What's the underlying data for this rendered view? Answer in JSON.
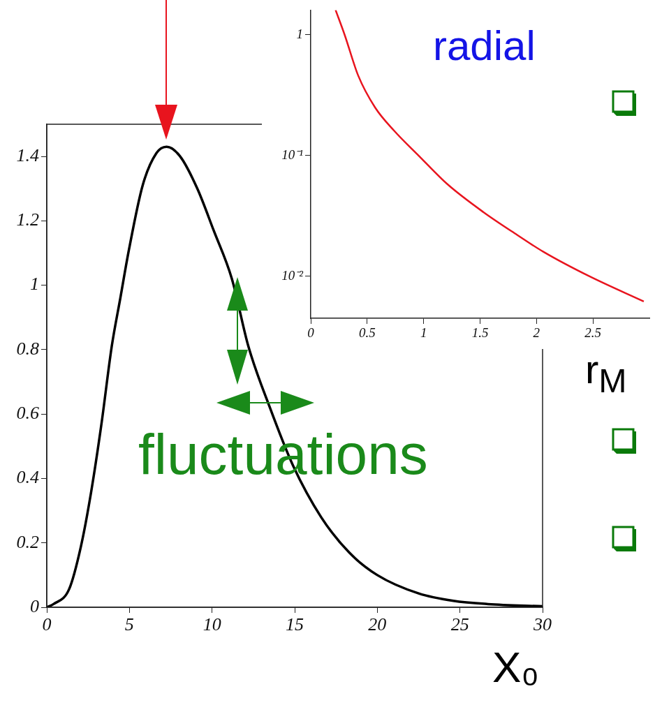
{
  "chart_data": [
    {
      "type": "line",
      "xlabel": "X₀",
      "annotations": [
        {
          "text": "fluctuations",
          "x": 11.7,
          "y": 0.92
        }
      ],
      "x": [
        0,
        0.41,
        1.35,
        2.07,
        2.69,
        3.31,
        3.93,
        4.45,
        4.97,
        5.8,
        6.63,
        7.25,
        8.07,
        9.11,
        10.1,
        11.2,
        12.2,
        13.5,
        14.9,
        16.6,
        18.3,
        20,
        22.5,
        24.6,
        26.7,
        30
      ],
      "series": [
        {
          "color": "#000000",
          "values": [
            0,
            0.01,
            0.056,
            0.19,
            0.36,
            0.57,
            0.81,
            0.96,
            1.11,
            1.31,
            1.41,
            1.43,
            1.4,
            1.3,
            1.17,
            1.02,
            0.81,
            0.62,
            0.44,
            0.28,
            0.17,
            0.1,
            0.043,
            0.02,
            0.01,
            0.003
          ]
        }
      ],
      "xlim": [
        0,
        30
      ],
      "xticks": [
        0,
        5,
        10,
        15,
        20,
        25,
        30
      ],
      "ylim": [
        0,
        1.5
      ],
      "yticks": [
        0,
        0.2,
        0.4,
        0.6,
        0.8,
        1,
        1.2,
        1.4
      ],
      "marker": "none"
    },
    {
      "type": "line",
      "xlabel": "r$_{M}$",
      "annotations": [
        "radial"
      ],
      "x": [
        0.22,
        0.3,
        0.42,
        0.57,
        0.74,
        0.955,
        1.21,
        1.53,
        1.83,
        2.06,
        2.47,
        2.95
      ],
      "series": [
        {
          "color": "#e8141e",
          "values": [
            1.6,
            1.0,
            0.46,
            0.25,
            0.16,
            0.1,
            0.058,
            0.034,
            0.022,
            0.016,
            0.01,
            0.0062
          ]
        }
      ],
      "xlim": [
        0,
        3
      ],
      "xticks": [
        0,
        0.5,
        1,
        1.5,
        2,
        2.5
      ],
      "ylim": [
        0.0045,
        1.6
      ],
      "yticks": [
        {
          "value": 0.01,
          "label": "10⁻²"
        },
        {
          "value": 0.1,
          "label": "10⁻¹"
        },
        1
      ],
      "log": "y",
      "marker": "none"
    }
  ]
}
